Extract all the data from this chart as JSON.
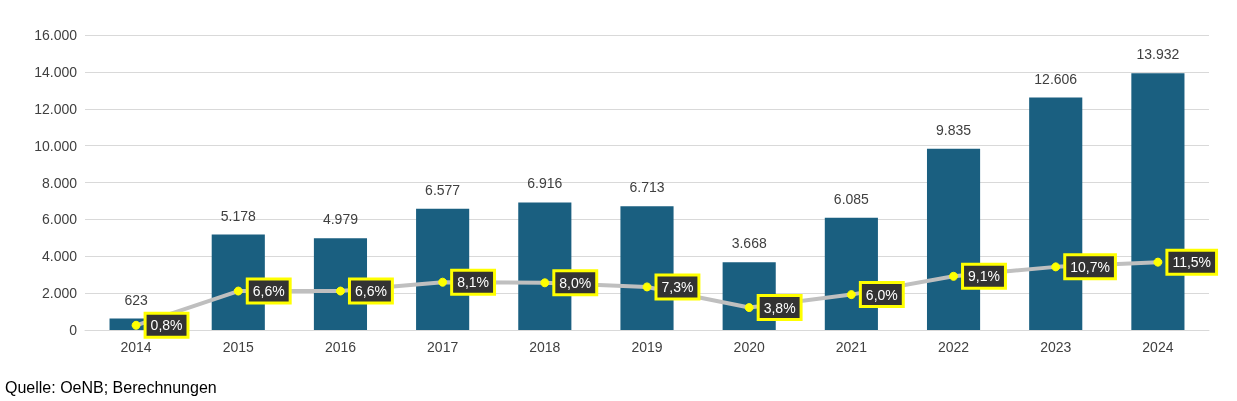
{
  "chart_data": {
    "type": "bar",
    "categories": [
      "2014",
      "2015",
      "2016",
      "2017",
      "2018",
      "2019",
      "2020",
      "2021",
      "2022",
      "2023",
      "2024"
    ],
    "series": [
      {
        "color": "#1a5f80",
        "values": [
          623,
          5178,
          4979,
          6577,
          6916,
          6713,
          3668,
          6085,
          9835,
          12606,
          13932
        ],
        "value_labels": [
          "623",
          "5.178",
          "4.979",
          "6.577",
          "6.916",
          "6.713",
          "3.668",
          "6.085",
          "9.835",
          "12.606",
          "13.932"
        ]
      },
      {
        "type": "line",
        "axis": "y2",
        "color": "#bfbfbf",
        "marker": "circle",
        "values": [
          0.8,
          6.6,
          6.6,
          8.1,
          8.0,
          7.3,
          3.8,
          6.0,
          9.1,
          10.7,
          11.5
        ],
        "value_labels": [
          "0,8%",
          "6,6%",
          "6,6%",
          "8,1%",
          "8,0%",
          "7,3%",
          "3,8%",
          "6,0%",
          "9,1%",
          "10,7%",
          "11,5%"
        ]
      }
    ],
    "ylim": [
      0,
      16000
    ],
    "yticks": [
      {
        "value": 0,
        "label": "0"
      },
      {
        "value": 2000,
        "label": "2.000"
      },
      {
        "value": 4000,
        "label": "4.000"
      },
      {
        "value": 6000,
        "label": "6.000"
      },
      {
        "value": 8000,
        "label": "8.000"
      },
      {
        "value": 10000,
        "label": "10.000"
      },
      {
        "value": 12000,
        "label": "12.000"
      },
      {
        "value": 14000,
        "label": "14.000"
      },
      {
        "value": 16000,
        "label": "16.000"
      }
    ],
    "y2lim": [
      0,
      50
    ],
    "grid": "y",
    "annotations": [
      "Quelle: OeNB; Berechnungen"
    ]
  }
}
